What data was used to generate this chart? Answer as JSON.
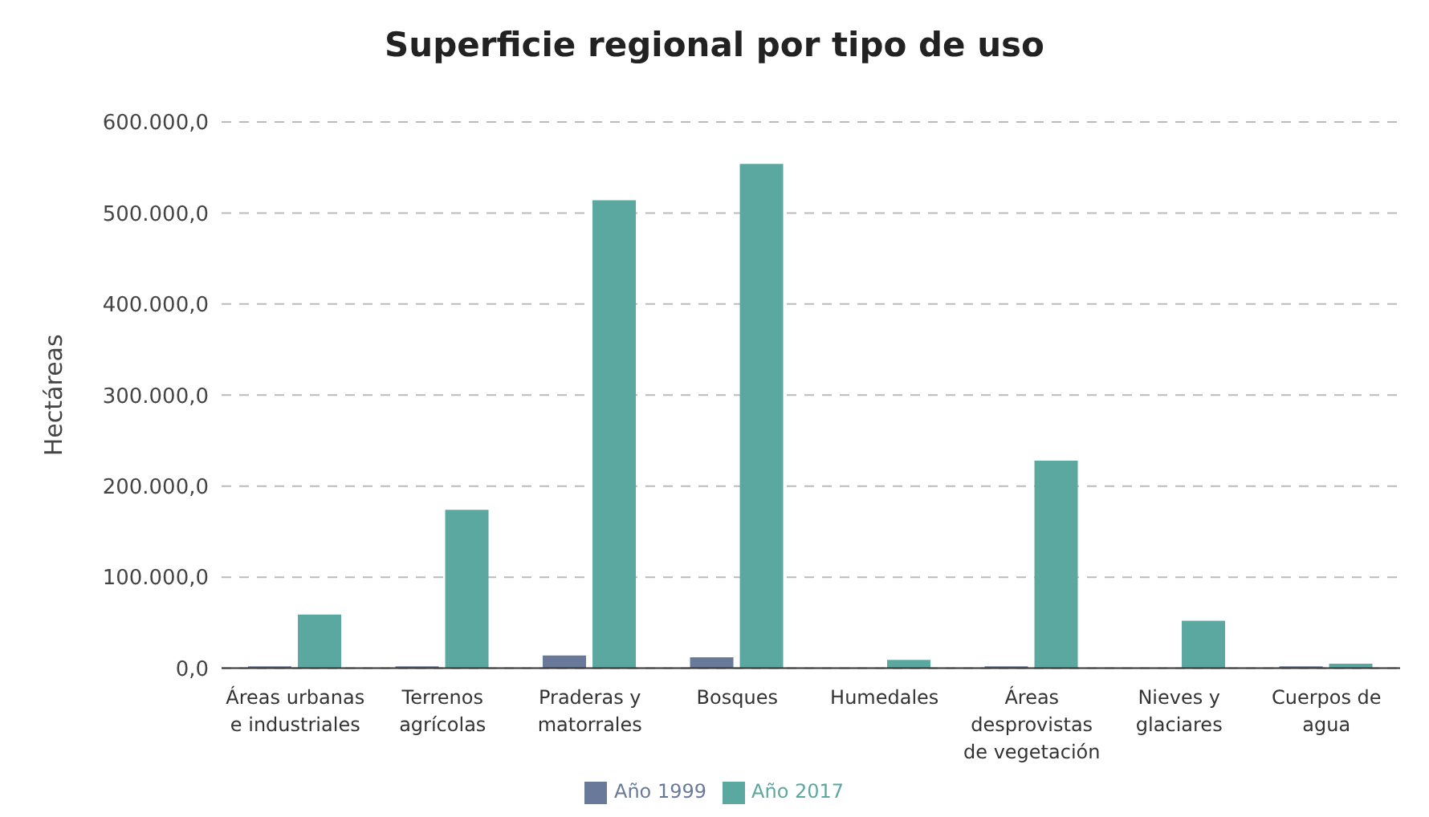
{
  "chart_data": {
    "type": "bar",
    "title": "Superficie regional por tipo de uso",
    "ylabel": "Hectáreas",
    "categories": [
      "Áreas urbanas e industriales",
      "Terrenos agrícolas",
      "Praderas y matorrales",
      "Bosques",
      "Humedales",
      "Áreas desprovistas de vegetación",
      "Nieves y glaciares",
      "Cuerpos de agua"
    ],
    "series": [
      {
        "name": "Año 1999",
        "color": "#68799a",
        "values": [
          2000,
          2000,
          14000,
          12000,
          0,
          2000,
          0,
          2000
        ]
      },
      {
        "name": "Año 2017",
        "color": "#5ba8a0",
        "values": [
          59000,
          174000,
          514000,
          554000,
          9000,
          228000,
          52000,
          5000
        ]
      }
    ],
    "ylim": [
      0,
      600000
    ],
    "yticks": [
      {
        "value": 0,
        "label": "0,0"
      },
      {
        "value": 100000,
        "label": "100.000,0"
      },
      {
        "value": 200000,
        "label": "200.000,0"
      },
      {
        "value": 300000,
        "label": "300.000,0"
      },
      {
        "value": 400000,
        "label": "400.000,0"
      },
      {
        "value": 500000,
        "label": "500.000,0"
      },
      {
        "value": 600000,
        "label": "600.000,0"
      }
    ],
    "grid": "y",
    "legend": "bottom"
  }
}
